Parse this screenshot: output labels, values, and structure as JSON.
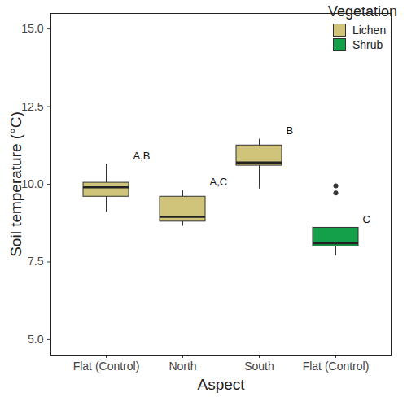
{
  "chart_data": {
    "type": "box",
    "x_label": "Aspect",
    "y_label": "Soil temperature (°C)",
    "legend_title": "Vegetation",
    "legend": "topright",
    "categories": [
      "Flat (Control)",
      "North",
      "South",
      "Flat (Control)"
    ],
    "vegetation": [
      "Lichen",
      "Lichen",
      "Lichen",
      "Shrub"
    ],
    "series": [
      {
        "name": "Lichen",
        "color": "#cfc479"
      },
      {
        "name": "Shrub",
        "color": "#14a04a"
      }
    ],
    "min": [
      9.1,
      8.65,
      9.85,
      7.7
    ],
    "q1": [
      9.6,
      8.8,
      10.6,
      8.0
    ],
    "median": [
      9.9,
      8.95,
      10.7,
      8.1
    ],
    "q3": [
      10.05,
      9.6,
      11.25,
      8.6
    ],
    "max": [
      10.65,
      9.8,
      11.45,
      8.6
    ],
    "outliers": [
      [],
      [],
      [],
      [
        9.72,
        9.95
      ]
    ],
    "letters": [
      "A,B",
      "A,C",
      "B",
      "C"
    ],
    "ylim": [
      4.5,
      15.5
    ],
    "yticks": [
      {
        "value": 5,
        "label": "5.0"
      },
      7.5,
      {
        "value": 10,
        "label": "10.0"
      },
      12.5,
      {
        "value": 15,
        "label": "15.0"
      }
    ],
    "grid": false
  }
}
